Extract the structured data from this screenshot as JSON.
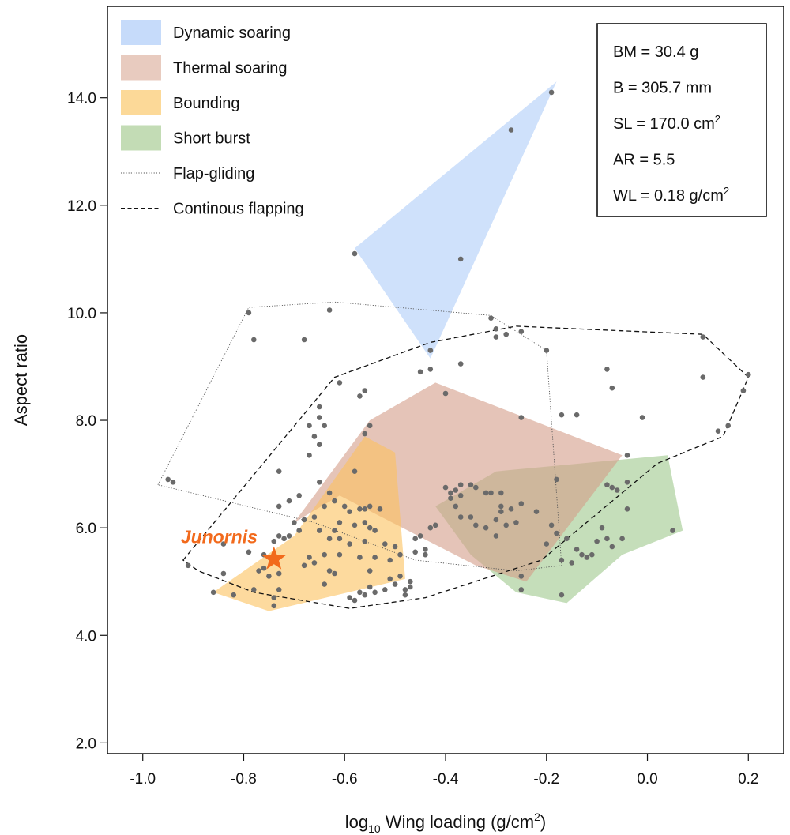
{
  "chart_data": {
    "type": "scatter",
    "xlabel": "log10 Wing loading (g/cm2)",
    "ylabel": "Aspect ratio",
    "xlim": [
      -1.07,
      0.27
    ],
    "ylim": [
      1.8,
      15.7
    ],
    "x_ticks": [
      -1.0,
      -0.8,
      -0.6,
      -0.4,
      -0.2,
      0.0,
      0.2
    ],
    "x_tick_labels": [
      "-1.0",
      "-0.8",
      "-0.6",
      "-0.4",
      "-0.2",
      "0.0",
      "0.2"
    ],
    "y_ticks": [
      2.0,
      4.0,
      6.0,
      8.0,
      10.0,
      12.0,
      14.0
    ],
    "y_tick_labels": [
      "2.0",
      "4.0",
      "6.0",
      "8.0",
      "10.0",
      "12.0",
      "14.0"
    ],
    "grid": false,
    "legend_position": "top-left",
    "legend": [
      {
        "label": "Dynamic soaring",
        "kind": "fill",
        "color": "#c6dbfa"
      },
      {
        "label": "Thermal soaring",
        "kind": "fill",
        "color": "#e8cbbf"
      },
      {
        "label": "Bounding",
        "kind": "fill",
        "color": "#fcd998"
      },
      {
        "label": "Short burst",
        "kind": "fill",
        "color": "#c3dcb5"
      },
      {
        "label": "Flap-gliding",
        "kind": "dotted"
      },
      {
        "label": "Continous flapping",
        "kind": "dashed"
      }
    ],
    "info_box": [
      "BM = 30.4 g",
      "B = 305.7 mm",
      "SL = 170.0 cm",
      "AR = 5.5",
      "WL = 0.18 g/cm"
    ],
    "info_superscript": [
      "",
      "",
      "2",
      "",
      "2"
    ],
    "regions": [
      {
        "name": "Short burst",
        "color": "#9ec88c",
        "opacity": 0.6,
        "points": [
          [
            -0.42,
            6.4
          ],
          [
            -0.3,
            7.05
          ],
          [
            0.04,
            7.35
          ],
          [
            0.07,
            5.95
          ],
          [
            -0.05,
            5.5
          ],
          [
            -0.16,
            4.6
          ],
          [
            -0.26,
            4.8
          ],
          [
            -0.35,
            5.5
          ]
        ]
      },
      {
        "name": "Thermal soaring",
        "color": "#d49d88",
        "opacity": 0.6,
        "points": [
          [
            -0.7,
            6.1
          ],
          [
            -0.55,
            8.0
          ],
          [
            -0.42,
            8.7
          ],
          [
            -0.05,
            7.35
          ],
          [
            -0.24,
            5.0
          ],
          [
            -0.34,
            5.3
          ],
          [
            -0.61,
            6.6
          ]
        ]
      },
      {
        "name": "Bounding",
        "color": "#fcc25e",
        "opacity": 0.6,
        "points": [
          [
            -0.86,
            4.8
          ],
          [
            -0.7,
            5.85
          ],
          [
            -0.56,
            7.7
          ],
          [
            -0.5,
            7.4
          ],
          [
            -0.48,
            5.05
          ],
          [
            -0.75,
            4.45
          ]
        ]
      },
      {
        "name": "Dynamic soaring",
        "color": "#a8c8f8",
        "opacity": 0.55,
        "points": [
          [
            -0.58,
            11.2
          ],
          [
            -0.18,
            14.3
          ],
          [
            -0.43,
            9.15
          ]
        ]
      }
    ],
    "hulls": [
      {
        "name": "Flap-gliding",
        "style": "dotted",
        "points": [
          [
            -0.97,
            6.8
          ],
          [
            -0.79,
            10.1
          ],
          [
            -0.62,
            10.2
          ],
          [
            -0.31,
            9.95
          ],
          [
            -0.2,
            9.3
          ],
          [
            -0.17,
            5.3
          ],
          [
            -0.26,
            5.2
          ],
          [
            -0.46,
            5.4
          ],
          [
            -0.66,
            6.1
          ]
        ]
      },
      {
        "name": "Continous flapping",
        "style": "dashed",
        "points": [
          [
            -0.92,
            5.4
          ],
          [
            -0.62,
            8.8
          ],
          [
            -0.43,
            9.45
          ],
          [
            -0.26,
            9.75
          ],
          [
            0.11,
            9.6
          ],
          [
            0.2,
            8.8
          ],
          [
            0.15,
            7.7
          ],
          [
            0.02,
            7.2
          ],
          [
            -0.21,
            5.4
          ],
          [
            -0.44,
            4.7
          ],
          [
            -0.59,
            4.5
          ],
          [
            -0.78,
            4.8
          ],
          [
            -0.89,
            5.2
          ]
        ]
      }
    ],
    "series": [
      {
        "marker": "circle",
        "color": "#6a6a6a",
        "points": [
          [
            -0.19,
            14.1
          ],
          [
            -0.27,
            13.4
          ],
          [
            -0.58,
            11.1
          ],
          [
            -0.37,
            11.0
          ],
          [
            -0.79,
            10.0
          ],
          [
            -0.63,
            10.05
          ],
          [
            -0.78,
            9.5
          ],
          [
            -0.68,
            9.5
          ],
          [
            -0.31,
            9.9
          ],
          [
            -0.3,
            9.7
          ],
          [
            -0.28,
            9.6
          ],
          [
            -0.3,
            9.55
          ],
          [
            -0.2,
            9.3
          ],
          [
            -0.25,
            9.65
          ],
          [
            -0.43,
            9.3
          ],
          [
            -0.43,
            8.95
          ],
          [
            -0.45,
            8.9
          ],
          [
            -0.37,
            9.05
          ],
          [
            -0.61,
            8.7
          ],
          [
            -0.56,
            8.55
          ],
          [
            -0.57,
            8.45
          ],
          [
            -0.4,
            8.5
          ],
          [
            -0.65,
            8.25
          ],
          [
            -0.65,
            8.05
          ],
          [
            -0.67,
            7.9
          ],
          [
            -0.64,
            7.9
          ],
          [
            -0.55,
            7.9
          ],
          [
            -0.56,
            7.75
          ],
          [
            -0.66,
            7.7
          ],
          [
            -0.65,
            7.55
          ],
          [
            -0.67,
            7.35
          ],
          [
            -0.73,
            7.05
          ],
          [
            -0.58,
            7.05
          ],
          [
            -0.25,
            8.05
          ],
          [
            -0.17,
            8.1
          ],
          [
            -0.14,
            8.1
          ],
          [
            -0.08,
            8.95
          ],
          [
            -0.07,
            8.6
          ],
          [
            -0.01,
            8.05
          ],
          [
            0.11,
            9.55
          ],
          [
            0.11,
            8.8
          ],
          [
            0.2,
            8.85
          ],
          [
            0.19,
            8.55
          ],
          [
            0.14,
            7.8
          ],
          [
            0.16,
            7.9
          ],
          [
            -0.04,
            7.35
          ],
          [
            -0.95,
            6.9
          ],
          [
            -0.94,
            6.85
          ],
          [
            -0.65,
            6.85
          ],
          [
            -0.69,
            6.6
          ],
          [
            -0.63,
            6.65
          ],
          [
            -0.62,
            6.5
          ],
          [
            -0.64,
            6.4
          ],
          [
            -0.6,
            6.4
          ],
          [
            -0.57,
            6.35
          ],
          [
            -0.59,
            6.3
          ],
          [
            -0.53,
            6.35
          ],
          [
            -0.55,
            6.4
          ],
          [
            -0.56,
            6.35
          ],
          [
            -0.71,
            6.5
          ],
          [
            -0.73,
            6.4
          ],
          [
            -0.66,
            6.2
          ],
          [
            -0.68,
            6.15
          ],
          [
            -0.7,
            6.1
          ],
          [
            -0.61,
            6.1
          ],
          [
            -0.58,
            6.05
          ],
          [
            -0.56,
            6.1
          ],
          [
            -0.55,
            6.0
          ],
          [
            -0.54,
            5.95
          ],
          [
            -0.62,
            5.95
          ],
          [
            -0.65,
            5.95
          ],
          [
            -0.69,
            5.95
          ],
          [
            -0.71,
            5.85
          ],
          [
            -0.73,
            5.85
          ],
          [
            -0.72,
            5.8
          ],
          [
            -0.74,
            5.75
          ],
          [
            -0.63,
            5.8
          ],
          [
            -0.61,
            5.8
          ],
          [
            -0.59,
            5.7
          ],
          [
            -0.56,
            5.75
          ],
          [
            -0.52,
            5.7
          ],
          [
            -0.5,
            5.65
          ],
          [
            -0.84,
            5.7
          ],
          [
            -0.79,
            5.55
          ],
          [
            -0.76,
            5.5
          ],
          [
            -0.67,
            5.45
          ],
          [
            -0.64,
            5.5
          ],
          [
            -0.61,
            5.5
          ],
          [
            -0.57,
            5.45
          ],
          [
            -0.54,
            5.45
          ],
          [
            -0.51,
            5.4
          ],
          [
            -0.49,
            5.5
          ],
          [
            -0.46,
            5.55
          ],
          [
            -0.44,
            5.5
          ],
          [
            -0.44,
            5.6
          ],
          [
            -0.45,
            5.85
          ],
          [
            -0.46,
            5.8
          ],
          [
            -0.42,
            6.05
          ],
          [
            -0.43,
            6.0
          ],
          [
            -0.4,
            6.75
          ],
          [
            -0.38,
            6.7
          ],
          [
            -0.37,
            6.8
          ],
          [
            -0.35,
            6.8
          ],
          [
            -0.34,
            6.75
          ],
          [
            -0.39,
            6.65
          ],
          [
            -0.39,
            6.55
          ],
          [
            -0.37,
            6.6
          ],
          [
            -0.38,
            6.4
          ],
          [
            -0.32,
            6.65
          ],
          [
            -0.31,
            6.65
          ],
          [
            -0.29,
            6.65
          ],
          [
            -0.29,
            6.4
          ],
          [
            -0.29,
            6.3
          ],
          [
            -0.27,
            6.35
          ],
          [
            -0.25,
            6.45
          ],
          [
            -0.37,
            6.2
          ],
          [
            -0.35,
            6.2
          ],
          [
            -0.34,
            6.05
          ],
          [
            -0.32,
            6.0
          ],
          [
            -0.3,
            6.15
          ],
          [
            -0.28,
            6.05
          ],
          [
            -0.26,
            6.1
          ],
          [
            -0.3,
            5.85
          ],
          [
            -0.19,
            6.05
          ],
          [
            -0.18,
            5.9
          ],
          [
            -0.2,
            5.7
          ],
          [
            -0.16,
            5.8
          ],
          [
            -0.14,
            5.6
          ],
          [
            -0.11,
            5.5
          ],
          [
            -0.1,
            5.75
          ],
          [
            -0.08,
            5.8
          ],
          [
            -0.07,
            5.65
          ],
          [
            -0.09,
            6.0
          ],
          [
            -0.08,
            6.8
          ],
          [
            -0.07,
            6.75
          ],
          [
            -0.06,
            6.7
          ],
          [
            -0.04,
            6.85
          ],
          [
            -0.04,
            6.35
          ],
          [
            -0.18,
            6.9
          ],
          [
            -0.22,
            6.3
          ],
          [
            -0.15,
            5.35
          ],
          [
            -0.13,
            5.5
          ],
          [
            -0.12,
            5.45
          ],
          [
            -0.17,
            5.4
          ],
          [
            -0.25,
            5.1
          ],
          [
            -0.25,
            4.85
          ],
          [
            -0.17,
            4.75
          ],
          [
            -0.05,
            5.8
          ],
          [
            0.05,
            5.95
          ],
          [
            -0.91,
            5.3
          ],
          [
            -0.84,
            5.15
          ],
          [
            -0.86,
            4.8
          ],
          [
            -0.82,
            4.75
          ],
          [
            -0.77,
            5.2
          ],
          [
            -0.76,
            5.25
          ],
          [
            -0.75,
            5.1
          ],
          [
            -0.73,
            5.15
          ],
          [
            -0.68,
            5.3
          ],
          [
            -0.66,
            5.35
          ],
          [
            -0.63,
            5.2
          ],
          [
            -0.62,
            5.15
          ],
          [
            -0.55,
            5.2
          ],
          [
            -0.51,
            5.05
          ],
          [
            -0.49,
            5.1
          ],
          [
            -0.47,
            5.0
          ],
          [
            -0.47,
            4.9
          ],
          [
            -0.48,
            4.85
          ],
          [
            -0.5,
            4.95
          ],
          [
            -0.52,
            4.85
          ],
          [
            -0.54,
            4.8
          ],
          [
            -0.55,
            4.9
          ],
          [
            -0.57,
            4.8
          ],
          [
            -0.64,
            4.95
          ],
          [
            -0.73,
            4.85
          ],
          [
            -0.74,
            4.7
          ],
          [
            -0.78,
            4.85
          ],
          [
            -0.59,
            4.7
          ],
          [
            -0.58,
            4.65
          ],
          [
            -0.56,
            4.75
          ],
          [
            -0.48,
            4.75
          ],
          [
            -0.74,
            4.55
          ]
        ]
      }
    ],
    "annotation": {
      "text": "Junornis",
      "x": -0.74,
      "y": 5.42,
      "color": "#f26a1c"
    }
  }
}
